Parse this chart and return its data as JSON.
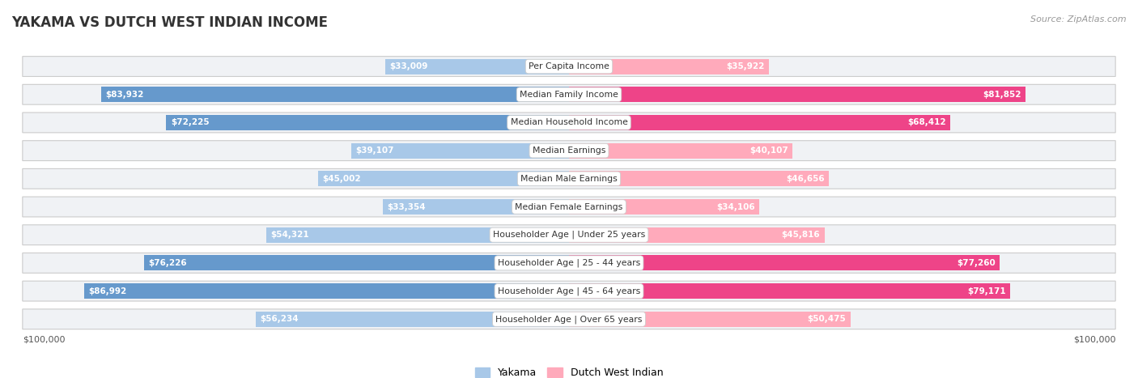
{
  "title": "YAKAMA VS DUTCH WEST INDIAN INCOME",
  "source": "Source: ZipAtlas.com",
  "categories": [
    "Per Capita Income",
    "Median Family Income",
    "Median Household Income",
    "Median Earnings",
    "Median Male Earnings",
    "Median Female Earnings",
    "Householder Age | Under 25 years",
    "Householder Age | 25 - 44 years",
    "Householder Age | 45 - 64 years",
    "Householder Age | Over 65 years"
  ],
  "yakama_values": [
    33009,
    83932,
    72225,
    39107,
    45002,
    33354,
    54321,
    76226,
    86992,
    56234
  ],
  "dutch_values": [
    35922,
    81852,
    68412,
    40107,
    46656,
    34106,
    45816,
    77260,
    79171,
    50475
  ],
  "yakama_labels": [
    "$33,009",
    "$83,932",
    "$72,225",
    "$39,107",
    "$45,002",
    "$33,354",
    "$54,321",
    "$76,226",
    "$86,992",
    "$56,234"
  ],
  "dutch_labels": [
    "$35,922",
    "$81,852",
    "$68,412",
    "$40,107",
    "$46,656",
    "$34,106",
    "$45,816",
    "$77,260",
    "$79,171",
    "$50,475"
  ],
  "yakama_color_light": "#a8c8e8",
  "yakama_color_dark": "#6699cc",
  "dutch_color_light": "#ffaabb",
  "dutch_color_dark": "#ee4488",
  "max_value": 100000,
  "threshold_dark": 60000,
  "legend_yakama": "Yakama",
  "legend_dutch": "Dutch West Indian",
  "background_color": "#ffffff",
  "row_bg_color": "#f0f2f5",
  "xlabel_left": "$100,000",
  "xlabel_right": "$100,000"
}
